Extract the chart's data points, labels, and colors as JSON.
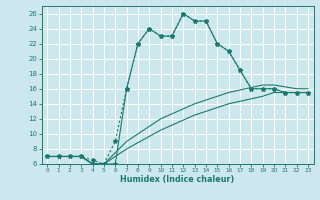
{
  "xlabel": "Humidex (Indice chaleur)",
  "bg_color": "#cce8ee",
  "grid_color": "#ffffff",
  "line_color": "#1a7a6e",
  "xlim": [
    -0.5,
    23.5
  ],
  "ylim": [
    6,
    27
  ],
  "yticks": [
    6,
    8,
    10,
    12,
    14,
    16,
    18,
    20,
    22,
    24,
    26
  ],
  "xticks": [
    0,
    1,
    2,
    3,
    4,
    5,
    6,
    7,
    8,
    9,
    10,
    11,
    12,
    13,
    14,
    15,
    16,
    17,
    18,
    19,
    20,
    21,
    22,
    23
  ],
  "curve1_x": [
    0,
    1,
    2,
    3,
    4,
    5,
    6,
    7,
    8,
    9,
    10,
    11,
    12,
    13,
    14,
    15,
    16,
    17,
    18,
    19,
    20,
    21,
    22,
    23
  ],
  "curve1_y": [
    7,
    7,
    7,
    7,
    6,
    6,
    6,
    16,
    22,
    24,
    23,
    23,
    26,
    25,
    25,
    22,
    21,
    18.5,
    16,
    16,
    16,
    15.5,
    15.5,
    15.5
  ],
  "curve2_x": [
    0,
    1,
    2,
    3,
    4,
    5,
    6,
    7,
    8,
    9,
    10,
    11,
    12,
    13,
    14,
    15,
    16,
    17,
    18,
    19,
    20,
    21,
    22,
    23
  ],
  "curve2_y": [
    7,
    7,
    7,
    7,
    6.5,
    6,
    9,
    16,
    22,
    24,
    23,
    23,
    26,
    25,
    25,
    22,
    21,
    18.5,
    16,
    16,
    16,
    15.5,
    15.5,
    15.5
  ],
  "curve3_x": [
    0,
    1,
    2,
    3,
    4,
    5,
    7,
    10,
    13,
    16,
    19,
    20,
    22,
    23
  ],
  "curve3_y": [
    7,
    7,
    7,
    7,
    6,
    6,
    9,
    12,
    14,
    15.5,
    16.5,
    16.5,
    16,
    16
  ],
  "curve4_x": [
    0,
    1,
    2,
    3,
    4,
    5,
    7,
    10,
    13,
    16,
    19,
    20,
    22,
    23
  ],
  "curve4_y": [
    7,
    7,
    7,
    7,
    6,
    6,
    8,
    10.5,
    12.5,
    14,
    15,
    15.5,
    15.5,
    15.5
  ]
}
